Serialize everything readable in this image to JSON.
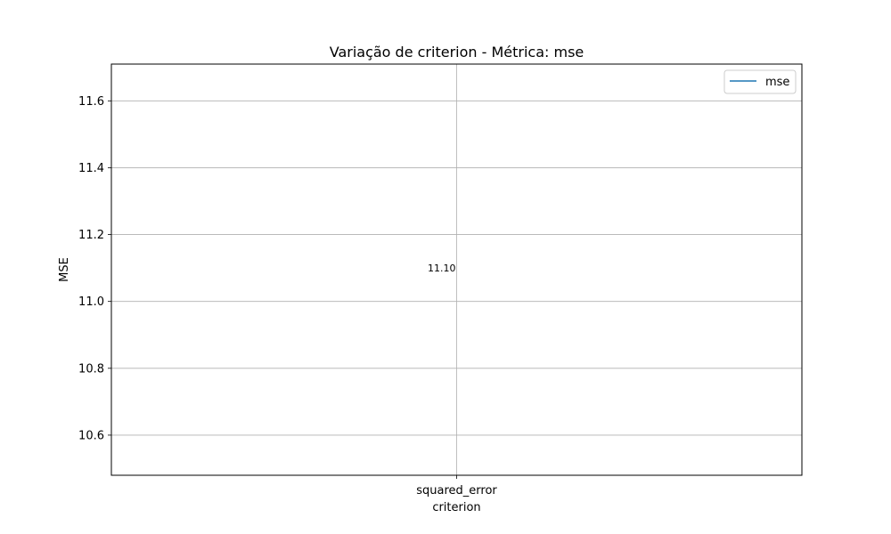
{
  "chart_data": {
    "type": "line",
    "title": "Variação de criterion - Métrica: mse",
    "xlabel": "criterion",
    "ylabel": "MSE",
    "categories": [
      "squared_error"
    ],
    "series": [
      {
        "name": "mse",
        "values": [
          11.1
        ],
        "color": "#1f77b4"
      }
    ],
    "data_labels": [
      "11.10"
    ],
    "ylim": [
      10.48,
      11.71
    ],
    "yticks": [
      10.6,
      10.8,
      11.0,
      11.2,
      11.4,
      11.6
    ],
    "ytick_labels": [
      "10.6",
      "10.8",
      "11.0",
      "11.2",
      "11.4",
      "11.6"
    ],
    "grid": true,
    "legend_position": "top-right"
  }
}
